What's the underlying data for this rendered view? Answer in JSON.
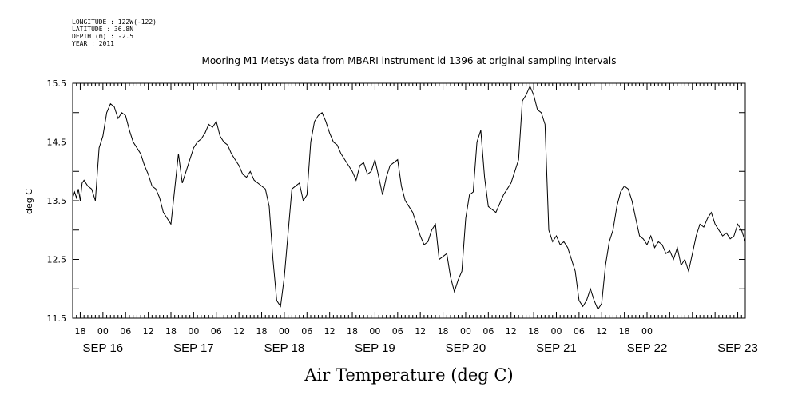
{
  "header": {
    "longitude": "LONGITUDE : 122W(-122)",
    "latitude": "LATITUDE : 36.8N",
    "depth": "DEPTH (m) : -2.5",
    "year": "YEAR : 2011"
  },
  "chart_data": {
    "type": "line",
    "title": "Mooring M1 Metsys data from MBARI instrument id 1396 at original sampling intervals",
    "xlabel": "Air Temperature (deg C)",
    "ylabel": "deg C",
    "ylim": [
      11.5,
      15.5
    ],
    "yticks": [
      "15.5",
      "14.5",
      "13.5",
      "12.5",
      "11.5"
    ],
    "xlim_hours": [
      -8,
      170
    ],
    "hour_tick_labels": [
      "18",
      "00",
      "06",
      "12",
      "18",
      "00",
      "06",
      "12",
      "18",
      "00",
      "06",
      "12",
      "18",
      "00",
      "06",
      "12",
      "18",
      "00",
      "06",
      "12",
      "18",
      "00",
      "06",
      "12",
      "18",
      "00"
    ],
    "date_labels": [
      "SEP 16",
      "SEP 17",
      "SEP 18",
      "SEP 19",
      "SEP 20",
      "SEP 21",
      "SEP 22",
      "SEP 23"
    ],
    "grid": false,
    "series": [
      {
        "x": [
          -8,
          -7.5,
          -7,
          -6.5,
          -6,
          -5.5,
          -5,
          -4,
          -3,
          -2,
          -1,
          0,
          1,
          2,
          3,
          4,
          5,
          6,
          7,
          8,
          9,
          10,
          11,
          12,
          13,
          14,
          15,
          16,
          17,
          18,
          19,
          20,
          21,
          22,
          23,
          24,
          25,
          26,
          27,
          28,
          29,
          30,
          31,
          32,
          33,
          34,
          35,
          36,
          37,
          38,
          39,
          40,
          41,
          42,
          43,
          44,
          45,
          46,
          47,
          48,
          50,
          52,
          53,
          54,
          55,
          56,
          57,
          58,
          59,
          60,
          61,
          62,
          63,
          64,
          65,
          66,
          67,
          68,
          69,
          70,
          71,
          72,
          73,
          74,
          75,
          76,
          77,
          78,
          79,
          80,
          81,
          82,
          83,
          84,
          85,
          86,
          87,
          88,
          89,
          90,
          91,
          92,
          93,
          94,
          95,
          96,
          97,
          98,
          99,
          100,
          101,
          102,
          104,
          106,
          108,
          110,
          111,
          112,
          113,
          114,
          115,
          116,
          117,
          118,
          119,
          120,
          121,
          122,
          123,
          124,
          125,
          126,
          127,
          128,
          129,
          130,
          131,
          132,
          133,
          134,
          135,
          136,
          137,
          138,
          139,
          140,
          141,
          142,
          143,
          144,
          145,
          146,
          147,
          148,
          149,
          150,
          151,
          152,
          153,
          154,
          155,
          156,
          157,
          158,
          159,
          160,
          161,
          162,
          163,
          164,
          165,
          166,
          167,
          168,
          169,
          170
        ],
        "y": [
          13.55,
          13.65,
          13.55,
          13.7,
          13.5,
          13.8,
          13.85,
          13.75,
          13.7,
          13.5,
          14.4,
          14.6,
          15.0,
          15.15,
          15.1,
          14.9,
          15.0,
          14.95,
          14.7,
          14.5,
          14.4,
          14.3,
          14.1,
          13.95,
          13.75,
          13.7,
          13.55,
          13.3,
          13.2,
          13.1,
          13.7,
          14.3,
          13.8,
          14.0,
          14.2,
          14.4,
          14.5,
          14.55,
          14.65,
          14.8,
          14.75,
          14.85,
          14.6,
          14.5,
          14.45,
          14.3,
          14.2,
          14.1,
          13.95,
          13.9,
          14.0,
          13.85,
          13.8,
          13.75,
          13.7,
          13.4,
          12.5,
          11.8,
          11.7,
          12.2,
          13.7,
          13.8,
          13.5,
          13.6,
          14.5,
          14.85,
          14.95,
          15.0,
          14.85,
          14.65,
          14.5,
          14.45,
          14.3,
          14.2,
          14.1,
          14.0,
          13.85,
          14.1,
          14.15,
          13.95,
          14.0,
          14.2,
          13.9,
          13.6,
          13.9,
          14.1,
          14.15,
          14.2,
          13.75,
          13.5,
          13.4,
          13.3,
          13.1,
          12.9,
          12.75,
          12.8,
          13.0,
          13.1,
          12.5,
          12.55,
          12.6,
          12.2,
          11.95,
          12.15,
          12.3,
          13.2,
          13.6,
          13.65,
          14.5,
          14.7,
          13.9,
          13.4,
          13.3,
          13.6,
          13.8,
          14.2,
          15.2,
          15.3,
          15.45,
          15.3,
          15.05,
          15.0,
          14.8,
          13.0,
          12.8,
          12.9,
          12.75,
          12.8,
          12.7,
          12.5,
          12.3,
          11.8,
          11.7,
          11.8,
          12.0,
          11.8,
          11.65,
          11.75,
          12.4,
          12.8,
          13.0,
          13.4,
          13.65,
          13.75,
          13.7,
          13.5,
          13.2,
          12.9,
          12.85,
          12.75,
          12.9,
          12.7,
          12.8,
          12.75,
          12.6,
          12.65,
          12.5,
          12.7,
          12.4,
          12.5,
          12.3,
          12.6,
          12.9,
          13.1,
          13.05,
          13.2,
          13.3,
          13.1,
          13.0,
          12.9,
          12.95,
          12.85,
          12.9,
          13.1,
          13.0,
          12.8
        ]
      }
    ]
  }
}
